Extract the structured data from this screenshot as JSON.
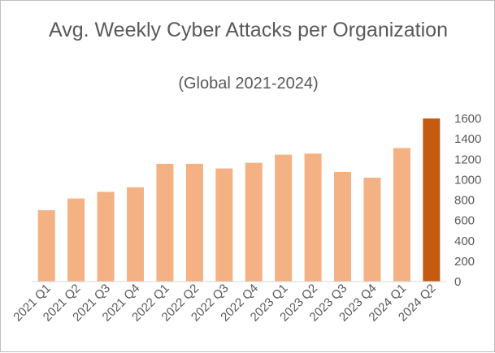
{
  "chart_data": {
    "type": "bar",
    "title": "Avg. Weekly Cyber Attacks per Organization",
    "subtitle": "(Global 2021-2024)",
    "xlabel": "",
    "ylabel": "",
    "categories": [
      "2021 Q1",
      "2021 Q2",
      "2021 Q3",
      "2021 Q4",
      "2022 Q1",
      "2022 Q2",
      "2022 Q3",
      "2022 Q4",
      "2023 Q1",
      "2023 Q2",
      "2023 Q3",
      "2023 Q4",
      "2024 Q1",
      "2024 Q2"
    ],
    "values": [
      700,
      815,
      880,
      925,
      1155,
      1155,
      1110,
      1165,
      1245,
      1255,
      1075,
      1020,
      1310,
      1600
    ],
    "ylim": [
      0,
      1600
    ],
    "yticks": [
      0,
      200,
      400,
      600,
      800,
      1000,
      1200,
      1400,
      1600
    ],
    "y_axis_position": "right",
    "grid": false,
    "bar_color": "#F4B183",
    "highlight_color": "#C55A11",
    "highlight_index": 13
  }
}
